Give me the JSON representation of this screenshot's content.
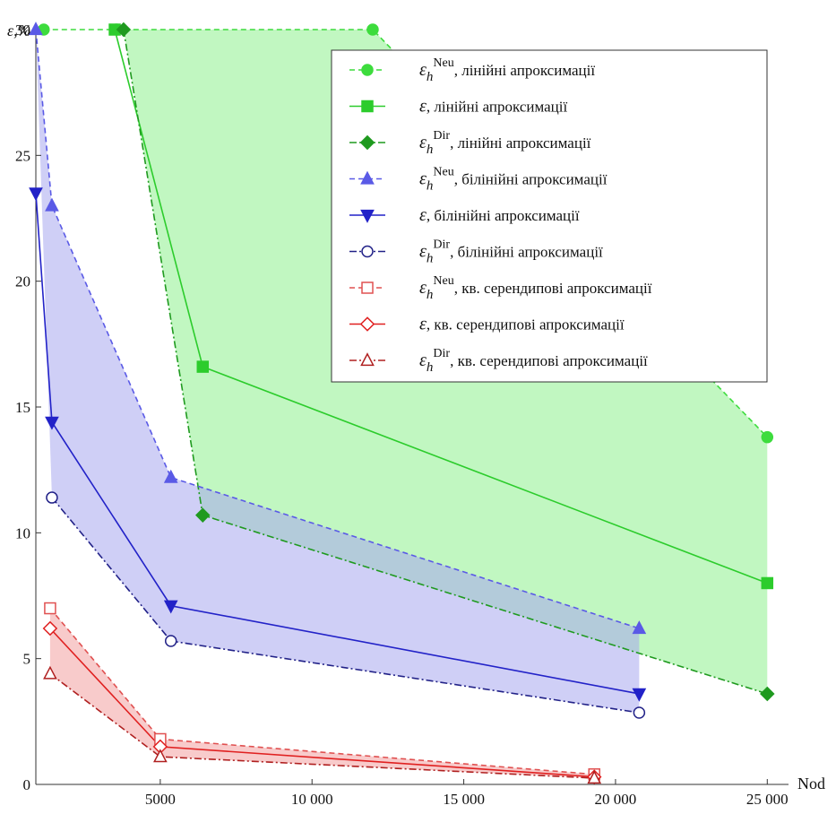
{
  "chart_data": {
    "type": "line",
    "y_label": "ε,%",
    "x_label": "Nod",
    "xlim": [
      900,
      25700
    ],
    "ylim": [
      0,
      30
    ],
    "xticks": [
      5000,
      {
        "value": 10000,
        "label": "10 000"
      },
      {
        "value": 15000,
        "label": "15 000"
      },
      {
        "value": 20000,
        "label": "20 000"
      },
      {
        "value": 25000,
        "label": "25 000"
      }
    ],
    "yticks": [
      0,
      5,
      10,
      15,
      20,
      25,
      30
    ],
    "bands": [
      {
        "from": 0,
        "to": 2,
        "fill": "#8ef08e"
      },
      {
        "from": 3,
        "to": 5,
        "fill": "#a8a8ee"
      },
      {
        "from": 6,
        "to": 8,
        "fill": "#f2a0a0"
      }
    ],
    "series": [
      {
        "symbol": "ε",
        "subscript": "h",
        "superscript": "Neu",
        "name": ", лінійні апроксимації",
        "color": "#3ddc3d",
        "dash": "dashed",
        "marker": "circle",
        "filled": true,
        "x": [
          1160,
          3560,
          12000,
          25000
        ],
        "values": [
          30,
          30,
          30,
          13.8
        ]
      },
      {
        "symbol": "ε",
        "name": ", лінійні апроксимації",
        "color": "#2ccc2c",
        "dash": "solid",
        "marker": "square",
        "filled": true,
        "x": [
          3500,
          6400,
          25000
        ],
        "values": [
          30,
          16.6,
          8.0
        ]
      },
      {
        "symbol": "ε",
        "subscript": "h",
        "superscript": "Dir",
        "name": ", лінійні апроксимації",
        "color": "#1f9a1f",
        "dash": "dashdot",
        "marker": "diamond",
        "filled": true,
        "x": [
          3790,
          6400,
          25000
        ],
        "values": [
          30,
          10.7,
          3.6
        ]
      },
      {
        "symbol": "ε",
        "subscript": "h",
        "superscript": "Neu",
        "name": ", білінійні апроксимації",
        "color": "#5a5ae6",
        "dash": "dashed",
        "marker": "triangle",
        "filled": true,
        "x": [
          900,
          1430,
          5350,
          20780
        ],
        "values": [
          30,
          23.0,
          12.2,
          6.2
        ]
      },
      {
        "symbol": "ε",
        "name": ", білінійні апроксимації",
        "color": "#2222c8",
        "dash": "solid",
        "marker": "triangle-down",
        "filled": true,
        "x": [
          900,
          1430,
          5350,
          20780
        ],
        "values": [
          23.5,
          14.4,
          7.1,
          3.6
        ]
      },
      {
        "symbol": "ε",
        "subscript": "h",
        "superscript": "Dir",
        "name": ", білінійні апроксимації",
        "color": "#222288",
        "dash": "dashdot",
        "marker": "circle",
        "filled": false,
        "x": [
          1430,
          5350,
          20780
        ],
        "values": [
          11.4,
          5.7,
          2.85
        ]
      },
      {
        "symbol": "ε",
        "subscript": "h",
        "superscript": "Neu",
        "name": ", кв. серендипові апроксимації",
        "color": "#e05050",
        "dash": "dashed",
        "marker": "square",
        "filled": false,
        "x": [
          1370,
          5000,
          19300
        ],
        "values": [
          7.0,
          1.8,
          0.4
        ]
      },
      {
        "symbol": "ε",
        "name": ", кв. серендипові апроксимації",
        "color": "#e02020",
        "dash": "solid",
        "marker": "diamond",
        "filled": false,
        "x": [
          1370,
          5000,
          19300
        ],
        "values": [
          6.2,
          1.5,
          0.3
        ]
      },
      {
        "symbol": "ε",
        "subscript": "h",
        "superscript": "Dir",
        "name": ", кв. серендипові апроксимації",
        "color": "#b02020",
        "dash": "dashdot",
        "marker": "triangle",
        "filled": false,
        "x": [
          1370,
          5000,
          19300
        ],
        "values": [
          4.4,
          1.1,
          0.25
        ]
      }
    ]
  }
}
